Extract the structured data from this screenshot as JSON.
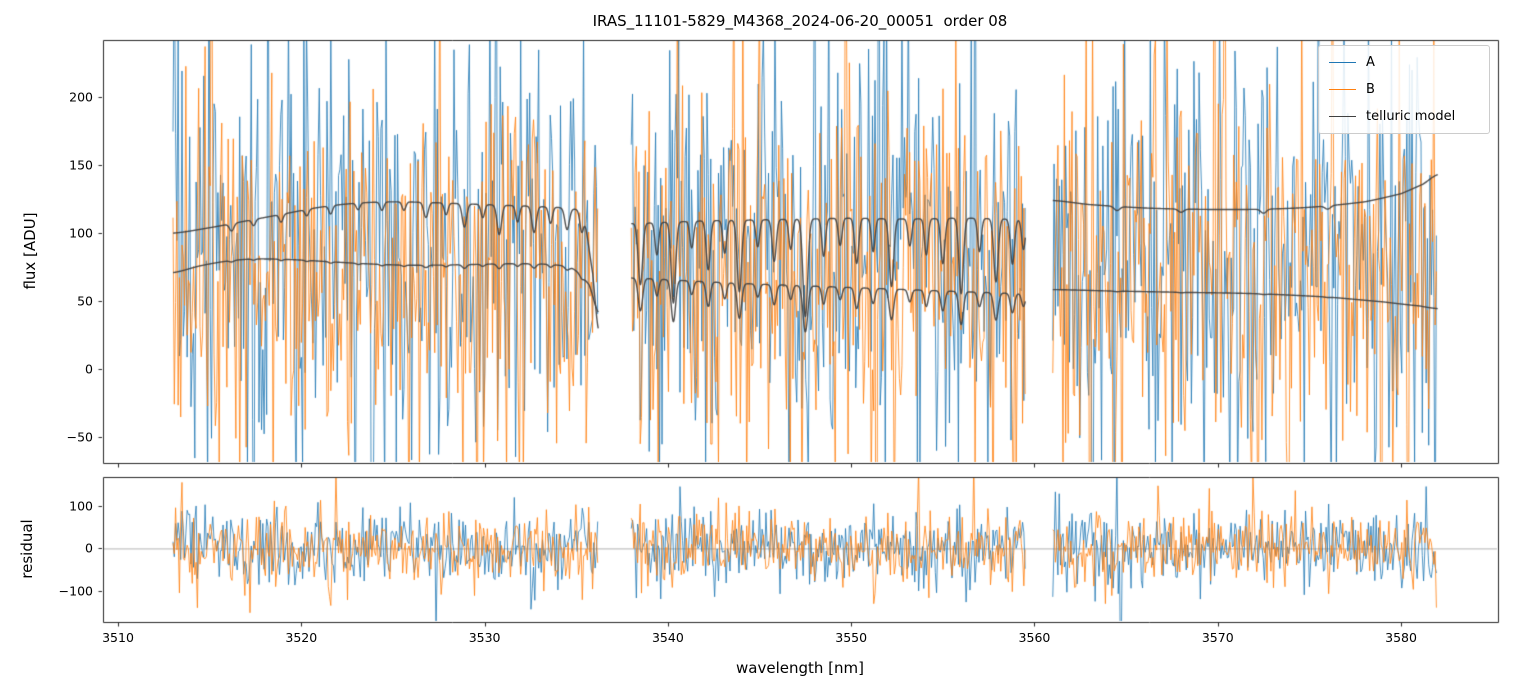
{
  "chart_data": {
    "type": "line",
    "title": "IRAS_11101-5829_M4368_2024-06-20_00051  order 08",
    "xlabel": "wavelength [nm]",
    "xlim": [
      3509.18,
      3585.29
    ],
    "xticks": [
      3510,
      3520,
      3530,
      3540,
      3550,
      3560,
      3570,
      3580
    ],
    "grid": false,
    "legend_position": "upper right",
    "segments_nm": [
      [
        3513.0,
        3536.2
      ],
      [
        3538.0,
        3559.5
      ],
      [
        3561.0,
        3582.0
      ]
    ],
    "noise_step_nm": 0.07,
    "telluric_step_nm": 0.02,
    "colors": {
      "A": "#1f77b4",
      "B": "#ff7f0e",
      "telluric": "#404040",
      "spine": "#262626",
      "zero_line": "#9e9e9e"
    },
    "subplots": [
      {
        "name": "flux",
        "ylabel": "flux [ADU]",
        "ylim": [
          -69,
          242
        ],
        "yticks": [
          -50,
          0,
          50,
          100,
          150,
          200
        ],
        "legend": [
          {
            "label": "A",
            "color": "#1f77b4"
          },
          {
            "label": "B",
            "color": "#ff7f0e"
          },
          {
            "label": "telluric model",
            "color": "#404040"
          }
        ],
        "series_noise": [
          {
            "name": "A",
            "color": "#1f77b4",
            "mean": 85,
            "sigma": 75,
            "spike_prob": 0.07,
            "spike_scale": 2.2,
            "seed": 11
          },
          {
            "name": "B",
            "color": "#ff7f0e",
            "mean": 68,
            "sigma": 70,
            "spike_prob": 0.07,
            "spike_scale": 2.2,
            "seed": 22
          }
        ],
        "telluric_model": {
          "color": "#404040",
          "segments": [
            {
              "upper": [
                [
                  3513,
                  100
                ],
                [
                  3515,
                  104
                ],
                [
                  3517,
                  109
                ],
                [
                  3519,
                  114
                ],
                [
                  3521,
                  119
                ],
                [
                  3523,
                  122
                ],
                [
                  3525,
                  123
                ],
                [
                  3527,
                  122.5
                ],
                [
                  3529,
                  121.5
                ],
                [
                  3531,
                  120.5
                ],
                [
                  3533,
                  119.5
                ],
                [
                  3534.5,
                  118
                ],
                [
                  3535.4,
                  112
                ],
                [
                  3535.9,
                  70
                ],
                [
                  3536.2,
                  30
                ]
              ],
              "lower": [
                [
                  3513,
                  71
                ],
                [
                  3514.5,
                  76
                ],
                [
                  3516,
                  79.5
                ],
                [
                  3517.5,
                  81
                ],
                [
                  3519.5,
                  80.5
                ],
                [
                  3521.5,
                  79
                ],
                [
                  3523.5,
                  77.5
                ],
                [
                  3525.5,
                  76.5
                ],
                [
                  3527.5,
                  76.5
                ],
                [
                  3529.5,
                  77
                ],
                [
                  3531.5,
                  77.5
                ],
                [
                  3533.5,
                  77
                ],
                [
                  3534.8,
                  74
                ],
                [
                  3535.7,
                  62
                ],
                [
                  3536.2,
                  42
                ]
              ],
              "lines": [
                [
                  3516.2,
                  0.05,
                  0.12
                ],
                [
                  3517.4,
                  0.04,
                  0.1
                ],
                [
                  3518.9,
                  0.05,
                  0.1
                ],
                [
                  3520.3,
                  0.04,
                  0.1
                ],
                [
                  3521.6,
                  0.05,
                  0.1
                ],
                [
                  3523.1,
                  0.04,
                  0.1
                ],
                [
                  3524.4,
                  0.05,
                  0.1
                ],
                [
                  3525.6,
                  0.05,
                  0.1
                ],
                [
                  3526.8,
                  0.09,
                  0.12
                ],
                [
                  3527.9,
                  0.07,
                  0.1
                ],
                [
                  3528.9,
                  0.14,
                  0.12
                ],
                [
                  3529.9,
                  0.08,
                  0.1
                ],
                [
                  3530.8,
                  0.18,
                  0.12
                ],
                [
                  3531.8,
                  0.1,
                  0.1
                ],
                [
                  3532.7,
                  0.16,
                  0.12
                ],
                [
                  3533.6,
                  0.1,
                  0.1
                ],
                [
                  3534.5,
                  0.13,
                  0.12
                ],
                [
                  3535.3,
                  0.12,
                  0.1
                ]
              ],
              "lines_on_lower": 0.25
            },
            {
              "upper": [
                [
                  3538,
                  107
                ],
                [
                  3540,
                  108
                ],
                [
                  3542,
                  109
                ],
                [
                  3544,
                  109.5
                ],
                [
                  3546,
                  110
                ],
                [
                  3548,
                  110.5
                ],
                [
                  3550,
                  111
                ],
                [
                  3552,
                  110.5
                ],
                [
                  3554,
                  110.5
                ],
                [
                  3556,
                  111
                ],
                [
                  3558,
                  110.5
                ],
                [
                  3559.5,
                  110
                ]
              ],
              "lower": [
                [
                  3538,
                  67
                ],
                [
                  3541,
                  65
                ],
                [
                  3544,
                  63
                ],
                [
                  3547,
                  61.5
                ],
                [
                  3550,
                  60
                ],
                [
                  3553,
                  58.5
                ],
                [
                  3556,
                  57
                ],
                [
                  3559.5,
                  55.5
                ]
              ],
              "lines": [
                [
                  3538.5,
                  0.42,
                  0.12
                ],
                [
                  3539.4,
                  0.22,
                  0.1
                ],
                [
                  3540.3,
                  0.55,
                  0.12
                ],
                [
                  3541.3,
                  0.18,
                  0.1
                ],
                [
                  3542.2,
                  0.33,
                  0.11
                ],
                [
                  3543.1,
                  0.22,
                  0.1
                ],
                [
                  3543.9,
                  0.48,
                  0.12
                ],
                [
                  3544.9,
                  0.18,
                  0.1
                ],
                [
                  3545.8,
                  0.28,
                  0.11
                ],
                [
                  3546.7,
                  0.2,
                  0.1
                ],
                [
                  3547.5,
                  0.65,
                  0.13
                ],
                [
                  3548.5,
                  0.25,
                  0.1
                ],
                [
                  3549.4,
                  0.18,
                  0.1
                ],
                [
                  3550.3,
                  0.3,
                  0.11
                ],
                [
                  3551.2,
                  0.22,
                  0.1
                ],
                [
                  3552.2,
                  0.45,
                  0.12
                ],
                [
                  3553.2,
                  0.18,
                  0.1
                ],
                [
                  3554.1,
                  0.24,
                  0.1
                ],
                [
                  3555.0,
                  0.3,
                  0.11
                ],
                [
                  3556.0,
                  0.5,
                  0.12
                ],
                [
                  3557.0,
                  0.22,
                  0.1
                ],
                [
                  3557.9,
                  0.42,
                  0.12
                ],
                [
                  3558.8,
                  0.3,
                  0.11
                ],
                [
                  3559.4,
                  0.2,
                  0.1
                ]
              ],
              "lines_on_lower": 0.85
            },
            {
              "upper": [
                [
                  3561,
                  124
                ],
                [
                  3563,
                  121
                ],
                [
                  3566,
                  118.5
                ],
                [
                  3569,
                  117.5
                ],
                [
                  3572,
                  117.5
                ],
                [
                  3575,
                  119
                ],
                [
                  3578,
                  123
                ],
                [
                  3580,
                  129
                ],
                [
                  3581.2,
                  136
                ],
                [
                  3582,
                  143
                ]
              ],
              "lower": [
                [
                  3561,
                  58.5
                ],
                [
                  3564,
                  57.5
                ],
                [
                  3568,
                  56.5
                ],
                [
                  3572,
                  55.5
                ],
                [
                  3576,
                  53
                ],
                [
                  3579,
                  49.5
                ],
                [
                  3581,
                  46.5
                ],
                [
                  3582,
                  44.5
                ]
              ],
              "lines": [
                [
                  3564.5,
                  0.025,
                  0.15
                ],
                [
                  3568,
                  0.02,
                  0.15
                ],
                [
                  3572.5,
                  0.025,
                  0.15
                ],
                [
                  3576,
                  0.02,
                  0.15
                ]
              ],
              "lines_on_lower": 0.3
            }
          ]
        }
      },
      {
        "name": "residual",
        "ylabel": "residual",
        "ylim": [
          -173,
          168
        ],
        "yticks": [
          -100,
          0,
          100
        ],
        "zero_line": true,
        "series_noise": [
          {
            "name": "A",
            "color": "#1f77b4",
            "mean": 0,
            "sigma": 45,
            "spike_prob": 0.06,
            "spike_scale": 2.0,
            "seed": 33
          },
          {
            "name": "B",
            "color": "#ff7f0e",
            "mean": 0,
            "sigma": 42,
            "spike_prob": 0.06,
            "spike_scale": 2.0,
            "seed": 44
          }
        ]
      }
    ]
  }
}
